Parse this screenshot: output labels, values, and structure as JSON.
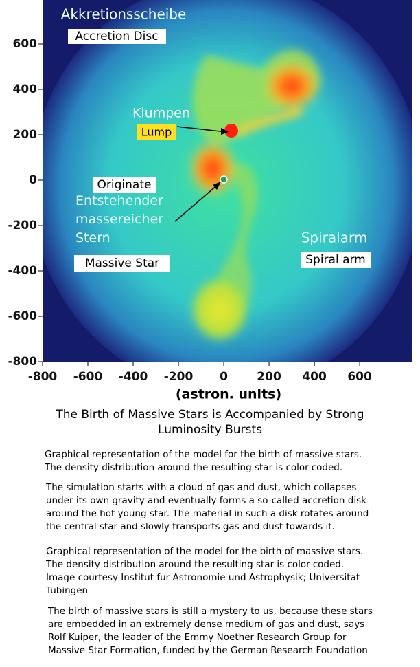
{
  "figure": {
    "xlim": [
      -800,
      830
    ],
    "ylim": [
      -800,
      800
    ],
    "xticks": [
      -800,
      -600,
      -400,
      -200,
      0,
      200,
      400,
      600
    ],
    "yticks": [
      -800,
      -600,
      -400,
      -200,
      0,
      200,
      400,
      600
    ],
    "xlabel": "(astron. units)",
    "labels": {
      "disc_de": "Akkretionsscheibe",
      "disc_en": "Accretion Disc",
      "lump_de": "Klumpen",
      "lump_en": "Lump",
      "originate": "Originate",
      "star_de": [
        "Entstehender",
        "massereicher",
        "Stern"
      ],
      "star_en": "Massive Star",
      "arm_de": "Spiralarm",
      "arm_en": "Spiral arm"
    }
  },
  "caption": {
    "title": [
      "The Birth of Massive Stars is Accompanied by Strong",
      "Luminosity Bursts"
    ],
    "paragraphs": [
      [
        "Graphical representation of the model for the birth of massive stars.",
        "The density distribution around the resulting star is color-coded."
      ],
      [
        "The simulation starts with a cloud of gas and dust, which collapses",
        "under its own gravity and eventually forms a so-called accretion disk",
        "around the hot young star. The material in such a disk rotates around",
        "the central star and slowly transports gas and dust towards it."
      ],
      [
        "Graphical representation of the model for the birth of massive stars.",
        "The density distribution around the resulting star is color-coded.",
        "Image courtesy Institut fur Astronomie und Astrophysik; Universitat",
        "Tubingen"
      ],
      [
        "The birth of massive stars is still a mystery to us, because these stars",
        "are embedded in an extremely dense medium of gas and dust, says",
        "Rolf Kuiper, the leader of the Emmy Noether Research Group for",
        "Massive Star Formation, funded by the German Research Foundation"
      ]
    ]
  }
}
